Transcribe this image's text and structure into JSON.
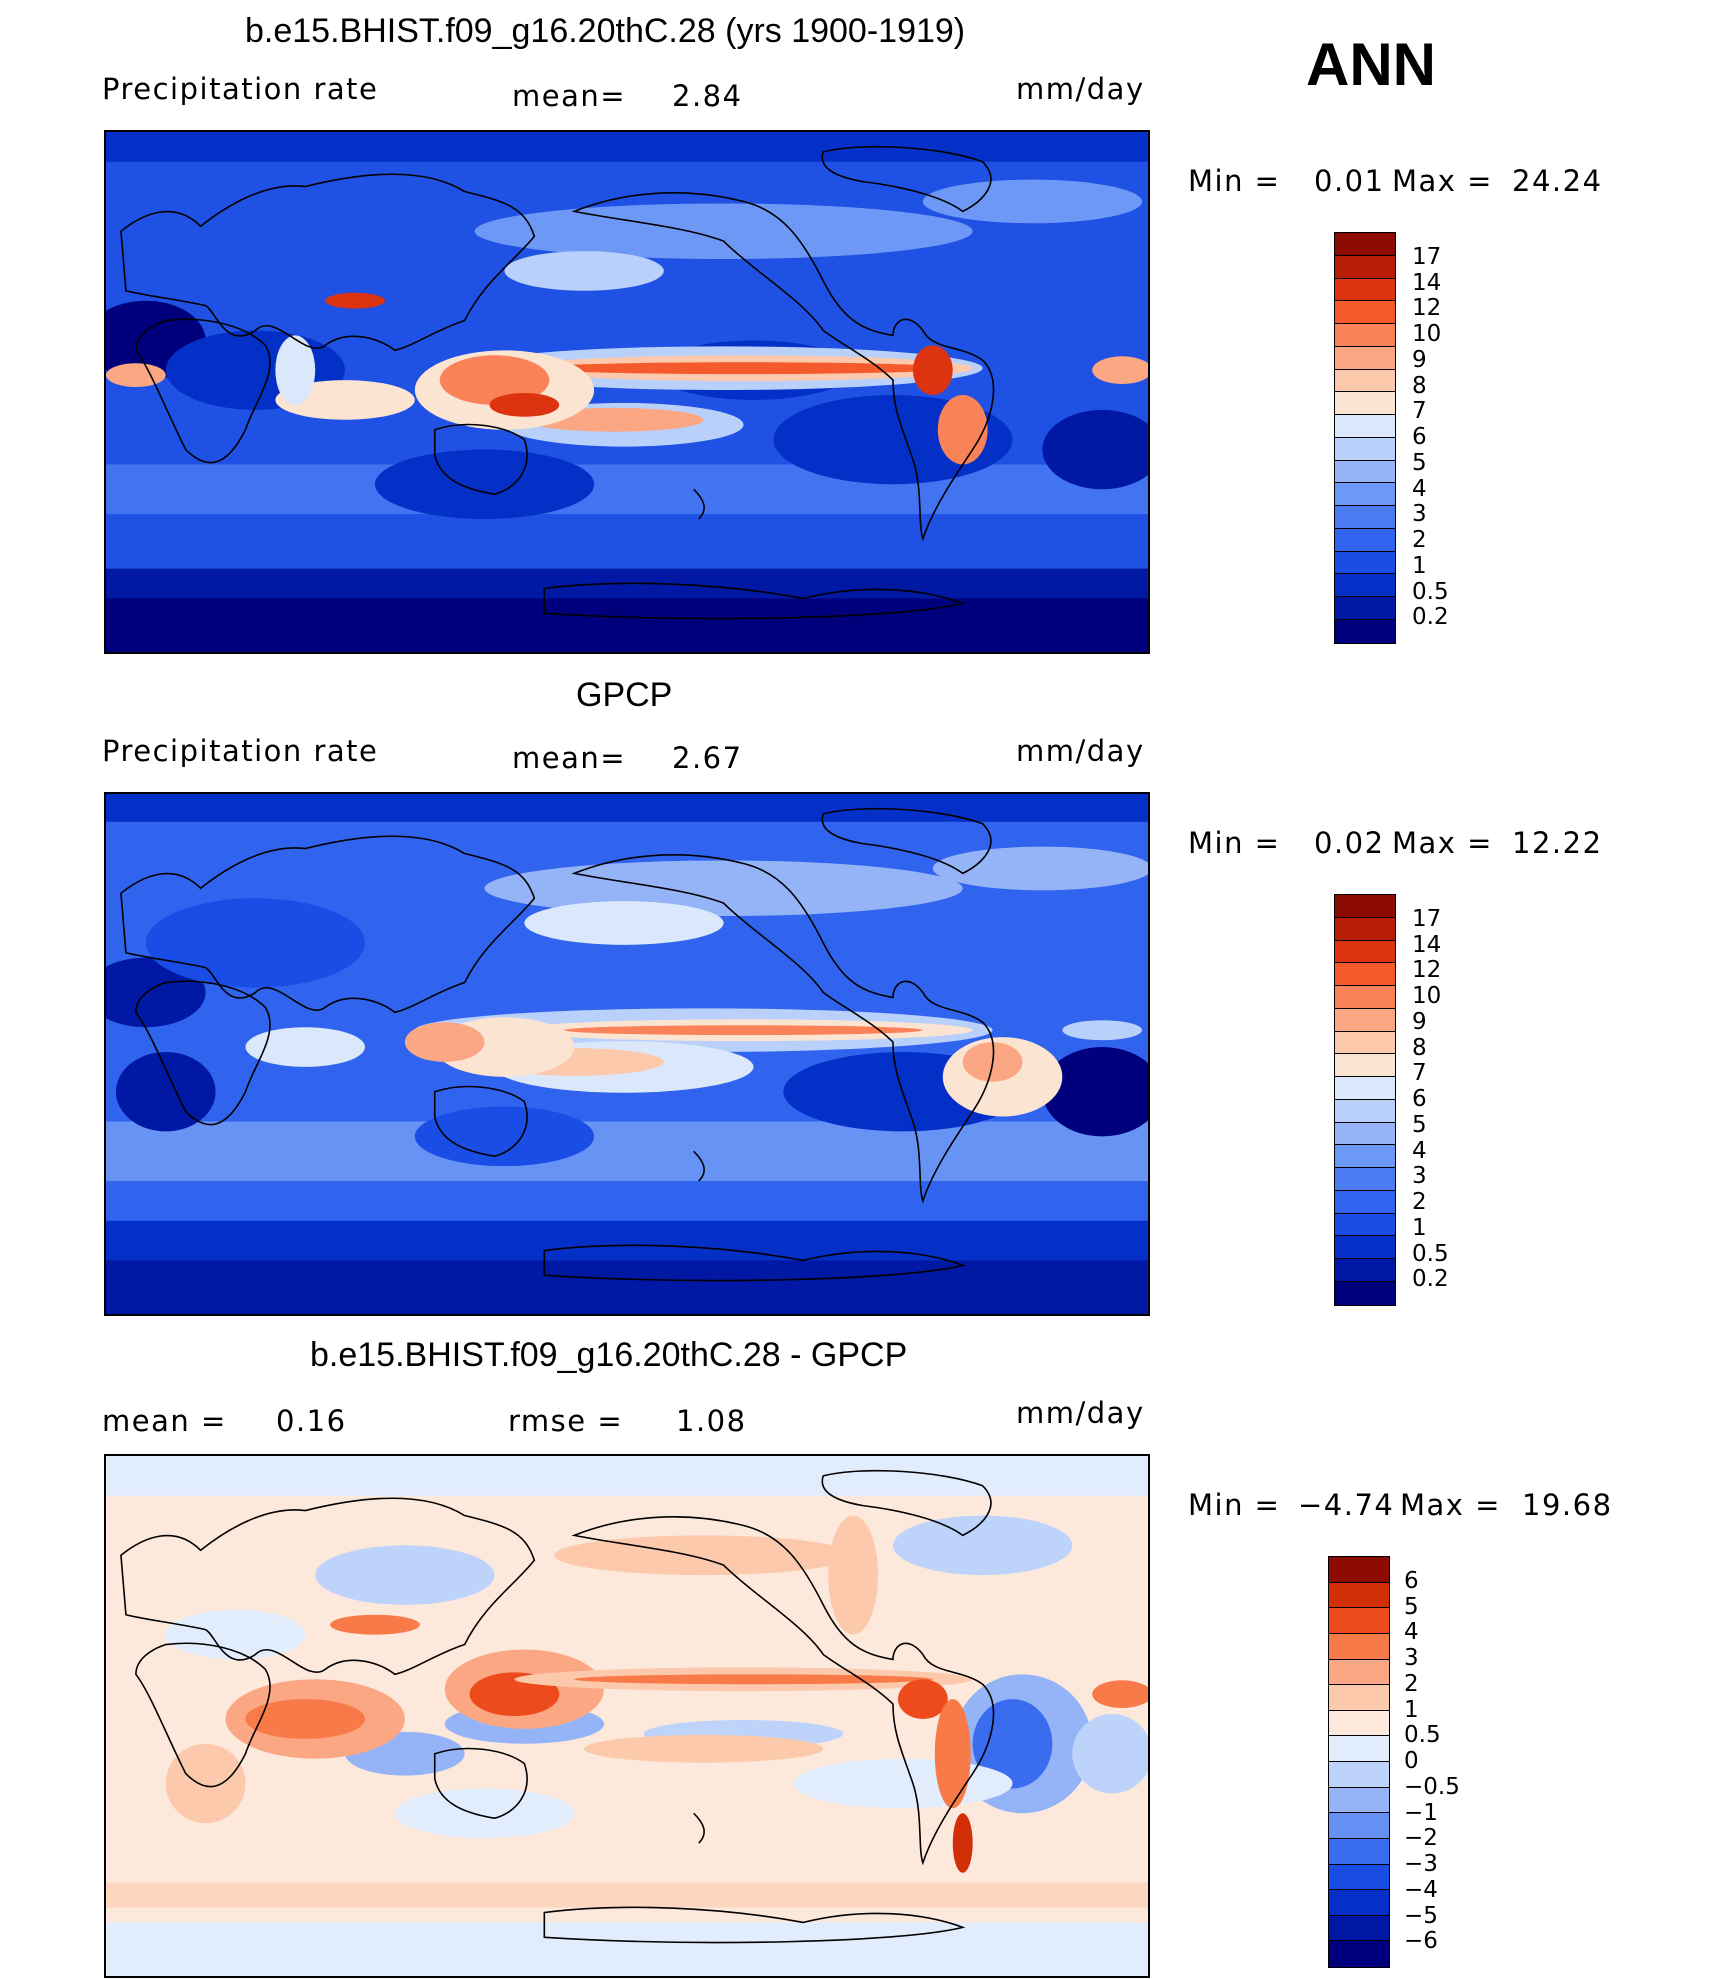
{
  "season_label": "ANN",
  "colors": {
    "precip": [
      "#00007d",
      "#0018a4",
      "#0530c8",
      "#1a4ce6",
      "#3164ee",
      "#4b7cf2",
      "#6e98f5",
      "#94b4f7",
      "#b9d0fa",
      "#dbe8fb",
      "#fce4d2",
      "#fcc9ac",
      "#fba784",
      "#fa8258",
      "#f45a2c",
      "#dc3410",
      "#b81e06",
      "#8c0b02"
    ],
    "diff": [
      "#00007d",
      "#0018a4",
      "#0530c8",
      "#1a4ce6",
      "#3a6cf0",
      "#6590f4",
      "#94b4f7",
      "#bdd3fa",
      "#e1ecfc",
      "#fde9dc",
      "#fcc9ac",
      "#fba784",
      "#f77a48",
      "#ee4b1c",
      "#d22e08",
      "#8c0b02"
    ]
  },
  "panels": [
    {
      "title": "b.e15.BHIST.f09_g16.20thC.28 (yrs 1900-1919)",
      "left_label": "Precipitation  rate",
      "mid_label": "mean=",
      "mid_value": "2.84",
      "units": "mm/day",
      "min_label": "Min  =",
      "min_value": "0.01",
      "max_label": "Max  =",
      "max_value": "24.24",
      "ticks": [
        "17",
        "14",
        "12",
        "10",
        "9",
        "8",
        "7",
        "6",
        "5",
        "4",
        "3",
        "2",
        "1",
        "0.5",
        "0.2"
      ]
    },
    {
      "title": "GPCP",
      "left_label": "Precipitation  rate",
      "mid_label": "mean=",
      "mid_value": "2.67",
      "units": "mm/day",
      "min_label": "Min  =",
      "min_value": "0.02",
      "max_label": "Max  =",
      "max_value": "12.22",
      "ticks": [
        "17",
        "14",
        "12",
        "10",
        "9",
        "8",
        "7",
        "6",
        "5",
        "4",
        "3",
        "2",
        "1",
        "0.5",
        "0.2"
      ]
    },
    {
      "title": "b.e15.BHIST.f09_g16.20thC.28 - GPCP",
      "left_label": "mean  =",
      "left_value": "0.16",
      "mid_label": "rmse  =",
      "mid_value": "1.08",
      "units": "mm/day",
      "min_label": "Min  =",
      "min_value": "−4.74",
      "max_label": "Max  =",
      "max_value": "19.68",
      "ticks": [
        "6",
        "5",
        "4",
        "3",
        "2",
        "1",
        "0.5",
        "0",
        "−0.5",
        "−1",
        "−2",
        "−3",
        "−4",
        "−5",
        "−6"
      ]
    }
  ]
}
